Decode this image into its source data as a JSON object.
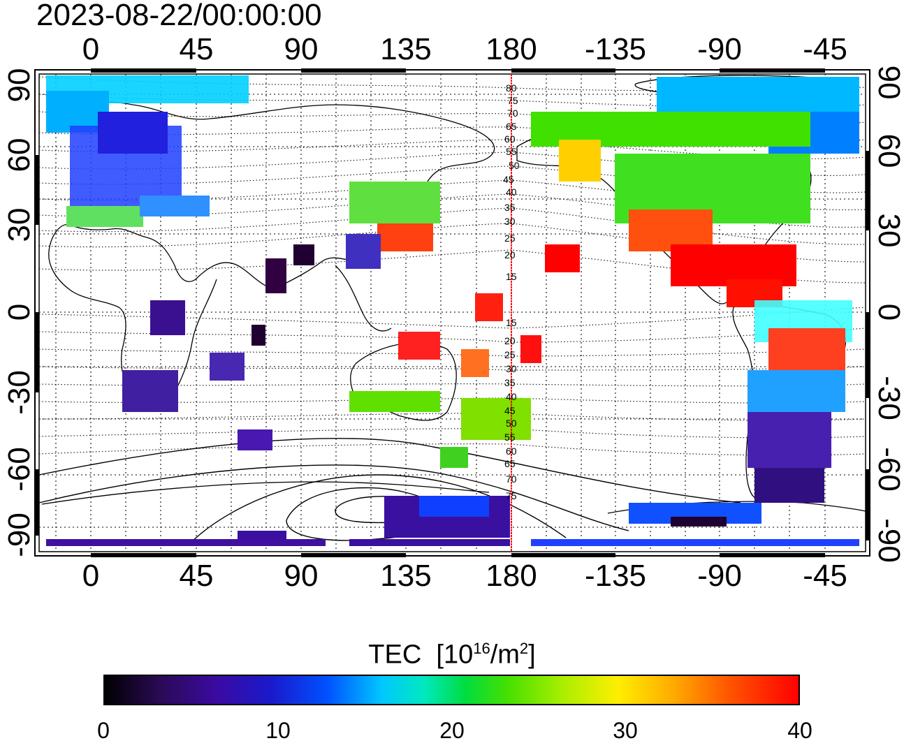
{
  "timestamp": "2023-08-22/00:00:00",
  "top_axis_labels": [
    "0",
    "45",
    "90",
    "135",
    "180",
    "-135",
    "-90",
    "-45"
  ],
  "bottom_axis_labels": [
    "0",
    "45",
    "90",
    "135",
    "180",
    "-135",
    "-90",
    "-45"
  ],
  "left_axis_labels": [
    "90",
    "60",
    "30",
    "0",
    "-30",
    "-60",
    "-90"
  ],
  "right_axis_labels": [
    "90",
    "60",
    "30",
    "0",
    "-30",
    "-60",
    "-90"
  ],
  "contour_labels_north": [
    "80",
    "75",
    "70",
    "65",
    "60",
    "55",
    "50",
    "45",
    "40",
    "35",
    "30",
    "25",
    "20",
    "15"
  ],
  "contour_labels_south": [
    "15",
    "20",
    "25",
    "30",
    "35",
    "40",
    "45",
    "50",
    "55",
    "60",
    "65",
    "70",
    "75"
  ],
  "colorbar": {
    "title_main": "TEC",
    "title_unit_open": "[10",
    "title_unit_exp": "16",
    "title_unit_mid": "/m",
    "title_unit_exp2": "2",
    "title_unit_close": "]",
    "ticks": [
      "0",
      "10",
      "20",
      "30",
      "40"
    ],
    "min": 0,
    "max": 40
  },
  "colors": {
    "low": "#000000",
    "mid_low": "#0050ff",
    "mid": "#00dd40",
    "mid_high": "#ffee00",
    "high": "#ff0000",
    "dateline": "#ff0000"
  }
}
